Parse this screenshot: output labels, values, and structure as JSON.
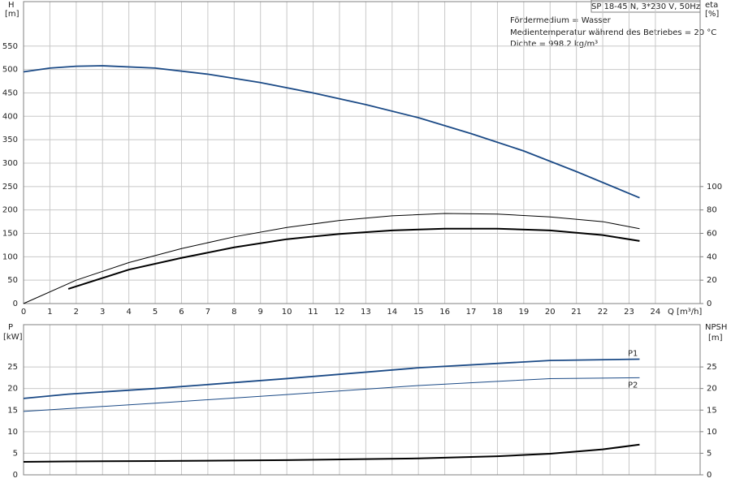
{
  "chart_data": [
    {
      "type": "line",
      "title": "SP 18-45 N, 3*230 V, 50Hz",
      "annotations": [
        "Fördermedium = Wasser",
        "Medientemperatur während des Betriebes = 20 °C",
        "Dichte = 998.2 kg/m³"
      ],
      "y_label": "H",
      "y_unit": "[m]",
      "y2_label": "eta",
      "y2_unit": "[%]",
      "x_label": "Q [m³/h]",
      "xlim": [
        0,
        25.7
      ],
      "xticks": [
        0,
        1,
        2,
        3,
        4,
        5,
        6,
        7,
        8,
        9,
        10,
        11,
        12,
        13,
        14,
        15,
        16,
        17,
        18,
        19,
        20,
        21,
        22,
        23,
        24
      ],
      "ylim": [
        0,
        645
      ],
      "yticks": [
        0,
        50,
        100,
        150,
        200,
        250,
        300,
        350,
        400,
        450,
        500,
        550
      ],
      "y2lim": [
        0,
        258
      ],
      "y2ticks": [
        0,
        20,
        40,
        60,
        80,
        100
      ],
      "grid": true,
      "series": [
        {
          "color": "#1b4a86",
          "width": 1.8,
          "x": [
            0,
            1,
            2,
            3,
            5,
            7,
            9,
            11,
            13,
            15,
            17,
            19,
            21,
            23.4
          ],
          "values": [
            495,
            503,
            507,
            508,
            503,
            490,
            472,
            450,
            425,
            397,
            363,
            326,
            282,
            226
          ]
        },
        {
          "color": "#000000",
          "width": 1,
          "axis": "y2",
          "x": [
            0,
            2,
            4,
            6,
            8,
            10,
            12,
            14,
            16,
            18,
            20,
            22,
            23.4
          ],
          "values": [
            0,
            20,
            35,
            47,
            57,
            65,
            71,
            75,
            77,
            76.5,
            74,
            70,
            64
          ]
        },
        {
          "color": "#000000",
          "width": 2,
          "axis": "y2",
          "x": [
            1.7,
            4,
            6,
            8,
            10,
            12,
            14,
            16,
            18,
            20,
            22,
            23.4
          ],
          "values": [
            12.5,
            29,
            39,
            48,
            55,
            59.5,
            62.5,
            64,
            64,
            62.5,
            58.5,
            53.5
          ]
        }
      ]
    },
    {
      "type": "line",
      "y_label": "P",
      "y_unit": "[kW]",
      "y2_label": "NPSH",
      "y2_unit": "[m]",
      "xlim": [
        0,
        25.7
      ],
      "ylim": [
        0,
        34.8
      ],
      "yticks": [
        0,
        5,
        10,
        15,
        20,
        25
      ],
      "y2lim": [
        0,
        34.8
      ],
      "y2ticks": [
        0,
        5,
        10,
        15,
        20,
        25
      ],
      "grid": true,
      "series": [
        {
          "name": "P1",
          "color": "#1b4a86",
          "width": 1.8,
          "x": [
            0,
            1.7,
            5,
            10,
            15,
            20,
            23.4
          ],
          "values": [
            17.7,
            18.7,
            20,
            22.3,
            24.8,
            26.5,
            26.8
          ]
        },
        {
          "name": "P2",
          "color": "#1b4a86",
          "width": 1,
          "x": [
            0,
            5,
            10,
            15,
            20,
            23.4
          ],
          "values": [
            14.7,
            16.6,
            18.6,
            20.7,
            22.3,
            22.5
          ]
        },
        {
          "color": "#000000",
          "width": 2,
          "axis": "y2",
          "x": [
            0,
            1.7,
            5,
            10,
            15,
            18,
            20,
            22,
            23.4
          ],
          "values": [
            3.0,
            3.1,
            3.2,
            3.4,
            3.8,
            4.3,
            4.9,
            5.9,
            7.0
          ]
        }
      ]
    }
  ]
}
